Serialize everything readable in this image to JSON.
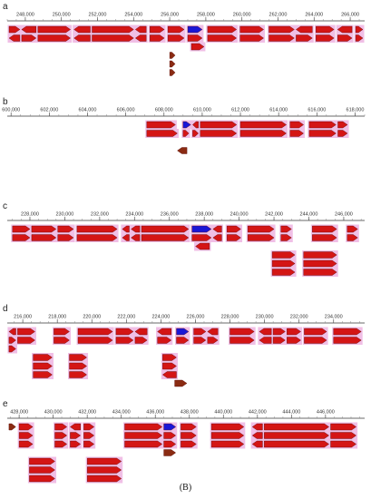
{
  "caption": "(B)",
  "colors": {
    "gene": "#d41515",
    "highlight": "#1a16d6",
    "halo": "#f0bfe6",
    "axis": "#888888",
    "small_arrow": "#8a2b12"
  },
  "panels": [
    {
      "label": "a",
      "scale": {
        "start": 247000,
        "end": 266800
      },
      "ticks": [
        {
          "label": "248,000",
          "value": 248000
        },
        {
          "label": "250,000",
          "value": 250000
        },
        {
          "label": "252,000",
          "value": 252000
        },
        {
          "label": "254,000",
          "value": 254000
        },
        {
          "label": "256,000",
          "value": 256000
        },
        {
          "label": "258,000",
          "value": 258000
        },
        {
          "label": "260,000",
          "value": 260000
        },
        {
          "label": "262,000",
          "value": 262000
        },
        {
          "label": "264,000",
          "value": 264000
        },
        {
          "label": "266,000",
          "value": 266000
        }
      ],
      "rows": [
        [
          [
            247100,
            247700,
            "r"
          ],
          [
            247800,
            248600,
            "l"
          ],
          [
            248700,
            250500,
            "r"
          ],
          [
            250700,
            251600,
            "l"
          ],
          [
            251700,
            254000,
            "r"
          ],
          [
            254100,
            254700,
            "l"
          ],
          [
            254900,
            255700,
            "r"
          ],
          [
            255900,
            256800,
            "r"
          ],
          [
            257000,
            257800,
            "r",
            "h"
          ],
          [
            258100,
            259700,
            "r"
          ],
          [
            259900,
            261200,
            "r"
          ],
          [
            261500,
            262900,
            "r"
          ],
          [
            263000,
            263900,
            "l"
          ],
          [
            264100,
            265100,
            "r"
          ],
          [
            265300,
            266100,
            "l"
          ],
          [
            266300,
            266700,
            "r"
          ]
        ],
        [
          [
            247100,
            247700,
            "l"
          ],
          [
            247800,
            248600,
            "r"
          ],
          [
            248700,
            250500,
            "r"
          ],
          [
            250700,
            251600,
            "l"
          ],
          [
            251700,
            254000,
            "r"
          ],
          [
            254100,
            254700,
            "l"
          ],
          [
            254900,
            255700,
            "r"
          ],
          [
            255900,
            256800,
            "r"
          ],
          [
            257000,
            257800,
            "r"
          ],
          [
            258100,
            259700,
            "r"
          ],
          [
            259900,
            261200,
            "r"
          ],
          [
            261500,
            262900,
            "r"
          ],
          [
            263000,
            263900,
            "r"
          ],
          [
            264100,
            265100,
            "r"
          ],
          [
            265300,
            266100,
            "r"
          ],
          [
            266300,
            266700,
            "r"
          ]
        ],
        [
          [
            257200,
            257900,
            "r"
          ]
        ],
        [
          [
            256000,
            256300,
            "r",
            "s"
          ]
        ],
        [
          [
            256000,
            256300,
            "r",
            "s"
          ]
        ],
        [
          [
            256000,
            256300,
            "r",
            "s"
          ]
        ]
      ]
    },
    {
      "label": "b",
      "scale": {
        "start": 599800,
        "end": 618500
      },
      "ticks": [
        {
          "label": "600,000",
          "value": 600000
        },
        {
          "label": "602,000",
          "value": 602000
        },
        {
          "label": "604,000",
          "value": 604000
        },
        {
          "label": "606,000",
          "value": 606000
        },
        {
          "label": "608,000",
          "value": 608000
        },
        {
          "label": "610,000",
          "value": 610000
        },
        {
          "label": "612,000",
          "value": 612000
        },
        {
          "label": "614,000",
          "value": 614000
        },
        {
          "label": "616,000",
          "value": 616000
        },
        {
          "label": "618,000",
          "value": 618000
        }
      ],
      "rows": [
        [
          [
            607100,
            608600,
            "r"
          ],
          [
            609000,
            609400,
            "r",
            "h"
          ],
          [
            609500,
            609800,
            "l"
          ],
          [
            609900,
            611800,
            "r"
          ],
          [
            612000,
            614400,
            "r"
          ],
          [
            614600,
            615300,
            "r"
          ],
          [
            615600,
            617000,
            "r"
          ],
          [
            617100,
            617600,
            "r"
          ]
        ],
        [
          [
            607100,
            608700,
            "r"
          ],
          [
            609000,
            609300,
            "r"
          ],
          [
            609500,
            609800,
            "r"
          ],
          [
            609900,
            611800,
            "r"
          ],
          [
            612000,
            614400,
            "r"
          ],
          [
            614600,
            615300,
            "r"
          ],
          [
            615600,
            617000,
            "r"
          ],
          [
            617100,
            617600,
            "r"
          ]
        ],
        [],
        [
          [
            608700,
            609200,
            "l",
            "s"
          ]
        ]
      ]
    },
    {
      "label": "c",
      "scale": {
        "start": 226700,
        "end": 247200
      },
      "ticks": [
        {
          "label": "228,000",
          "value": 228000
        },
        {
          "label": "230,000",
          "value": 230000
        },
        {
          "label": "232,000",
          "value": 232000
        },
        {
          "label": "234,000",
          "value": 234000
        },
        {
          "label": "236,000",
          "value": 236000
        },
        {
          "label": "238,000",
          "value": 238000
        },
        {
          "label": "240,000",
          "value": 240000
        },
        {
          "label": "242,000",
          "value": 242000
        },
        {
          "label": "244,000",
          "value": 244000
        },
        {
          "label": "246,000",
          "value": 246000
        }
      ],
      "rows": [
        [
          [
            227000,
            228000,
            "r"
          ],
          [
            228100,
            229500,
            "r"
          ],
          [
            229600,
            230500,
            "r"
          ],
          [
            230700,
            233000,
            "r"
          ],
          [
            233300,
            233700,
            "l"
          ],
          [
            233800,
            234300,
            "l"
          ],
          [
            234400,
            237100,
            "r"
          ],
          [
            237300,
            238400,
            "r",
            "h"
          ],
          [
            238500,
            239000,
            "l"
          ],
          [
            239300,
            240100,
            "r"
          ],
          [
            240500,
            242000,
            "r"
          ],
          [
            242400,
            243000,
            "r"
          ],
          [
            244200,
            245600,
            "r"
          ],
          [
            246200,
            246800,
            "r"
          ]
        ],
        [
          [
            227000,
            228000,
            "r"
          ],
          [
            228100,
            229500,
            "r"
          ],
          [
            229600,
            230500,
            "r"
          ],
          [
            230700,
            233000,
            "r"
          ],
          [
            233300,
            233700,
            "l"
          ],
          [
            233800,
            234300,
            "l"
          ],
          [
            234400,
            237100,
            "r"
          ],
          [
            237300,
            238400,
            "r"
          ],
          [
            238500,
            239000,
            "l"
          ],
          [
            239300,
            240100,
            "r"
          ],
          [
            240500,
            242000,
            "r"
          ],
          [
            242400,
            243000,
            "r"
          ],
          [
            244200,
            245600,
            "r"
          ],
          [
            246200,
            246800,
            "r"
          ]
        ],
        [
          [
            237500,
            238300,
            "l"
          ]
        ],
        [
          [
            241900,
            243200,
            "r"
          ],
          [
            243700,
            245600,
            "r"
          ]
        ],
        [
          [
            241900,
            243200,
            "r"
          ],
          [
            243700,
            245600,
            "r"
          ]
        ],
        [
          [
            241900,
            243200,
            "r"
          ],
          [
            243700,
            245600,
            "r"
          ]
        ]
      ]
    },
    {
      "label": "d",
      "scale": {
        "start": 215100,
        "end": 235800
      },
      "ticks": [
        {
          "label": "216,000",
          "value": 216000
        },
        {
          "label": "218,000",
          "value": 218000
        },
        {
          "label": "220,000",
          "value": 220000
        },
        {
          "label": "222,000",
          "value": 222000
        },
        {
          "label": "224,000",
          "value": 224000
        },
        {
          "label": "226,000",
          "value": 226000
        },
        {
          "label": "228,000",
          "value": 228000
        },
        {
          "label": "230,000",
          "value": 230000
        },
        {
          "label": "232,000",
          "value": 232000
        },
        {
          "label": "234,000",
          "value": 234000
        }
      ],
      "rows": [
        [
          [
            215200,
            215600,
            "l"
          ],
          [
            215700,
            216700,
            "r"
          ],
          [
            217800,
            218700,
            "r"
          ],
          [
            219200,
            221200,
            "r"
          ],
          [
            221400,
            222400,
            "r"
          ],
          [
            222500,
            223200,
            "l"
          ],
          [
            223800,
            224600,
            "l"
          ],
          [
            224900,
            225600,
            "r",
            "h"
          ],
          [
            225900,
            226600,
            "r"
          ],
          [
            226700,
            227300,
            "l"
          ],
          [
            228000,
            229400,
            "r"
          ],
          [
            229700,
            230400,
            "l"
          ],
          [
            230500,
            231200,
            "r"
          ],
          [
            231300,
            232100,
            "r"
          ],
          [
            232300,
            233600,
            "r"
          ],
          [
            234000,
            235600,
            "r"
          ]
        ],
        [
          [
            215200,
            215600,
            "r"
          ],
          [
            215700,
            216700,
            "r"
          ],
          [
            217800,
            218700,
            "r"
          ],
          [
            219200,
            221200,
            "r"
          ],
          [
            221400,
            222400,
            "r"
          ],
          [
            222500,
            223200,
            "r"
          ],
          [
            223800,
            224600,
            "r"
          ],
          [
            224900,
            225600,
            "r"
          ],
          [
            225900,
            226600,
            "r"
          ],
          [
            226700,
            227300,
            "r"
          ],
          [
            228000,
            229400,
            "r"
          ],
          [
            229700,
            230400,
            "l"
          ],
          [
            230500,
            231200,
            "r"
          ],
          [
            231300,
            232100,
            "r"
          ],
          [
            232300,
            233600,
            "r"
          ],
          [
            234000,
            235600,
            "r"
          ]
        ],
        [
          [
            215200,
            215600,
            "r"
          ]
        ],
        [
          [
            216600,
            217700,
            "r"
          ],
          [
            218700,
            219700,
            "r"
          ],
          [
            224100,
            224900,
            "r"
          ]
        ],
        [
          [
            216600,
            217700,
            "r"
          ],
          [
            218700,
            219700,
            "r"
          ],
          [
            224100,
            224900,
            "r"
          ]
        ],
        [
          [
            216600,
            217700,
            "r"
          ],
          [
            218700,
            219700,
            "r"
          ],
          [
            224100,
            224900,
            "l"
          ]
        ],
        [
          [
            224800,
            225500,
            "r",
            "s"
          ]
        ]
      ]
    },
    {
      "label": "e",
      "scale": {
        "start": 427300,
        "end": 448300
      },
      "ticks": [
        {
          "label": "428,000",
          "value": 428000
        },
        {
          "label": "430,000",
          "value": 430000
        },
        {
          "label": "432,000",
          "value": 432000
        },
        {
          "label": "434,000",
          "value": 434000
        },
        {
          "label": "436,000",
          "value": 436000
        },
        {
          "label": "438,000",
          "value": 438000
        },
        {
          "label": "440,000",
          "value": 440000
        },
        {
          "label": "442,000",
          "value": 442000
        },
        {
          "label": "444,000",
          "value": 444000
        },
        {
          "label": "446,000",
          "value": 446000
        }
      ],
      "rows": [
        [
          [
            427400,
            427800,
            "r",
            "s"
          ],
          [
            428000,
            428800,
            "r"
          ],
          [
            430100,
            430800,
            "r"
          ],
          [
            431000,
            431600,
            "l"
          ],
          [
            431800,
            432400,
            "r"
          ],
          [
            434200,
            436400,
            "r"
          ],
          [
            436500,
            437200,
            "r",
            "h"
          ],
          [
            437500,
            438400,
            "r"
          ],
          [
            439300,
            441200,
            "r"
          ],
          [
            441700,
            442300,
            "l"
          ],
          [
            442400,
            446200,
            "r"
          ],
          [
            446300,
            447800,
            "r"
          ]
        ],
        [
          [
            428000,
            428800,
            "r"
          ],
          [
            430100,
            430800,
            "r"
          ],
          [
            431000,
            431600,
            "r"
          ],
          [
            431800,
            432400,
            "r"
          ],
          [
            434200,
            436400,
            "r"
          ],
          [
            436500,
            437200,
            "r"
          ],
          [
            437500,
            438400,
            "r"
          ],
          [
            439300,
            441200,
            "r"
          ],
          [
            441700,
            442300,
            "l"
          ],
          [
            442400,
            446200,
            "r"
          ],
          [
            446300,
            447800,
            "r"
          ]
        ],
        [
          [
            428000,
            428800,
            "r"
          ],
          [
            430100,
            430800,
            "r"
          ],
          [
            431000,
            431600,
            "r"
          ],
          [
            431800,
            432400,
            "r"
          ],
          [
            434200,
            436400,
            "r"
          ],
          [
            436500,
            437200,
            "r"
          ],
          [
            437500,
            438400,
            "r"
          ],
          [
            439300,
            441200,
            "r"
          ],
          [
            441700,
            442300,
            "l"
          ],
          [
            442400,
            446200,
            "r"
          ],
          [
            446300,
            447800,
            "r"
          ]
        ],
        [
          [
            436500,
            437200,
            "r",
            "s"
          ]
        ],
        [
          [
            428600,
            430100,
            "r"
          ],
          [
            432000,
            434000,
            "r"
          ]
        ],
        [
          [
            428600,
            430100,
            "r"
          ],
          [
            432000,
            434000,
            "r"
          ]
        ],
        [
          [
            428600,
            430100,
            "r"
          ],
          [
            432000,
            434000,
            "r"
          ]
        ]
      ]
    }
  ]
}
